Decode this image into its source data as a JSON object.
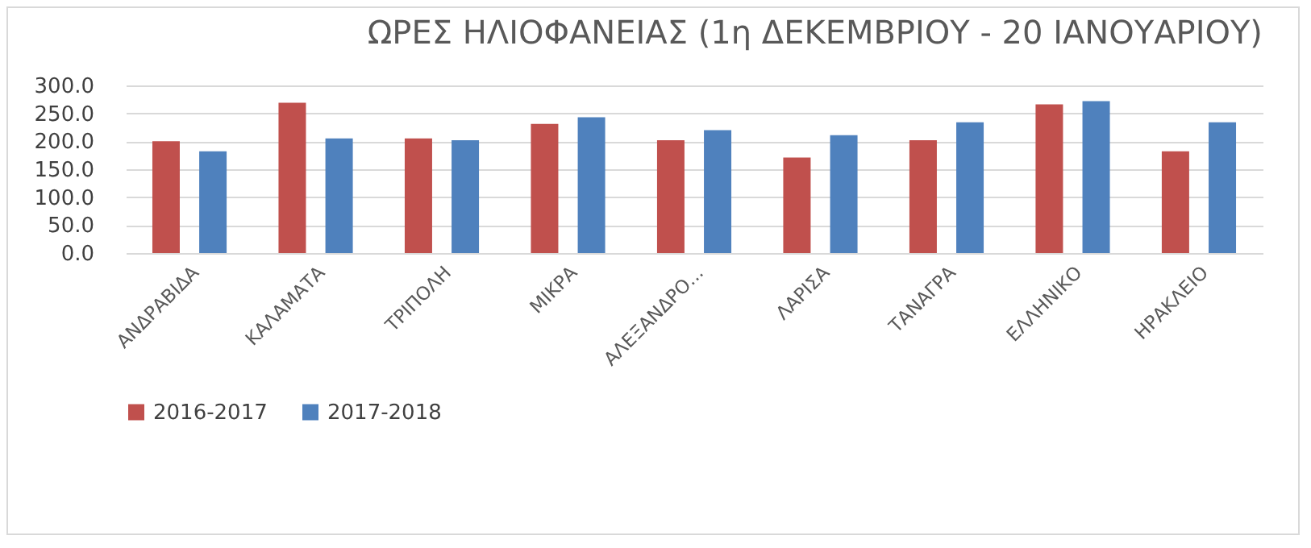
{
  "chart_data": {
    "type": "bar",
    "title": "ΩΡΕΣ ΗΛΙΟΦΑΝΕΙΑΣ (1η ΔΕΚΕΜΒΡΙΟΥ - 20 ΙΑΝΟΥΑΡΙΟΥ)",
    "categories": [
      "ΑΝΔΡΑΒΙΔΑ",
      "ΚΑΛΑΜΑΤΑ",
      "ΤΡΙΠΟΛΗ",
      "ΜΙΚΡΑ",
      "ΑΛΕΞΑΝΔΡΟ...",
      "ΛΑΡΙΣΑ",
      "ΤΑΝΑΓΡΑ",
      "ΕΛΛΗΝΙΚΟ",
      "ΗΡΑΚΛΕΙΟ"
    ],
    "series": [
      {
        "name": "2016-2017",
        "color": "#c0504d",
        "values": [
          200,
          269,
          205,
          231,
          202,
          171,
          202,
          266,
          182
        ]
      },
      {
        "name": "2017-2018",
        "color": "#4f81bd",
        "values": [
          182,
          205,
          202,
          243,
          220,
          211,
          234,
          272,
          234
        ]
      }
    ],
    "ylim": [
      0,
      300
    ],
    "yticks": [
      {
        "value": 0,
        "label": "0.0"
      },
      {
        "value": 50,
        "label": "50.0"
      },
      {
        "value": 100,
        "label": "100.0"
      },
      {
        "value": 150,
        "label": "150.0"
      },
      {
        "value": 200,
        "label": "200.0"
      },
      {
        "value": 250,
        "label": "250.0"
      },
      {
        "value": 300,
        "label": "300.0"
      }
    ],
    "grid": "y",
    "legend": "bottom"
  }
}
